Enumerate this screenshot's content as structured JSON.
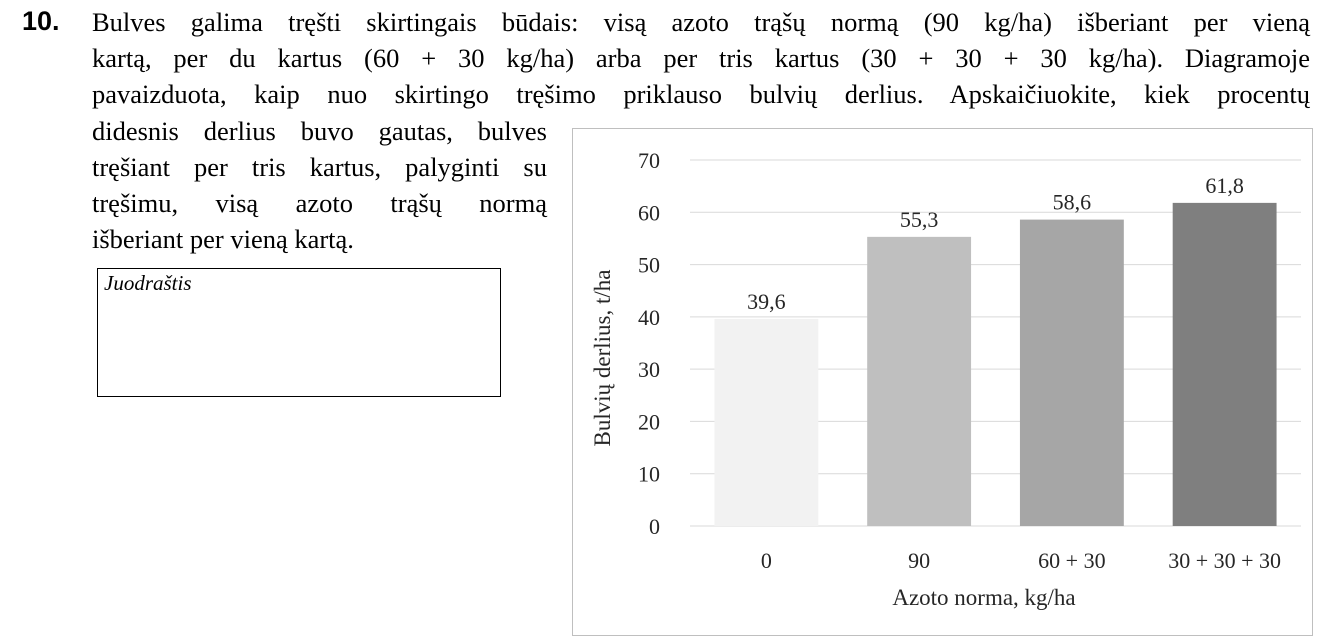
{
  "question": {
    "number": "10.",
    "lines": [
      "Bulves galima tręšti skirtingais būdais: visą azoto trąšų normą (90 kg/ha) išberiant per vieną",
      "kartą, per du kartus (60 + 30 kg/ha) arba per tris kartus (30 + 30 + 30 kg/ha). Diagramoje",
      "pavaizduota, kaip nuo skirtingo tręšimo priklauso bulvių derlius. Apskaičiuokite, kiek procentų",
      "didesnis derlius buvo gautas, bulves",
      "tręšiant per tris kartus, palyginti su",
      "tręšimu, visą azoto trąšų normą",
      "išberiant per vieną kartą."
    ]
  },
  "draft": {
    "label": "Juodraštis"
  },
  "chart_data": {
    "type": "bar",
    "categories": [
      "0",
      "90",
      "60 + 30",
      "30 + 30 + 30"
    ],
    "values": [
      39.6,
      55.3,
      58.6,
      61.8
    ],
    "value_labels": [
      "39,6",
      "55,3",
      "58,6",
      "61,8"
    ],
    "bar_colors": [
      "#f2f2f2",
      "#bfbfbf",
      "#a6a6a6",
      "#7f7f7f"
    ],
    "xlabel": "Azoto norma, kg/ha",
    "ylabel": "Bulvių derlius, t/ha",
    "ylim": [
      0,
      70
    ],
    "yticks": [
      0,
      10,
      20,
      30,
      40,
      50,
      60,
      70
    ],
    "grid": true,
    "gridline_color": "#d9d9d9"
  }
}
